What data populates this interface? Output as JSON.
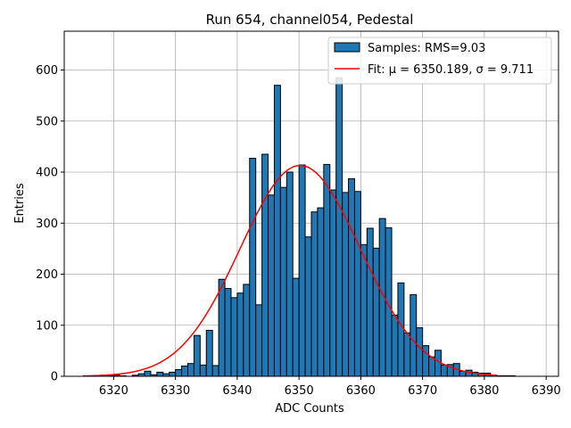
{
  "chart_data": {
    "type": "bar",
    "title": "Run 654, channel054, Pedestal",
    "xlabel": "ADC Counts",
    "ylabel": "Entries",
    "xlim": [
      6312,
      6392
    ],
    "ylim": [
      0,
      676
    ],
    "xticks": [
      6320,
      6330,
      6340,
      6350,
      6360,
      6370,
      6380,
      6390
    ],
    "yticks": [
      0,
      100,
      200,
      300,
      400,
      500,
      600
    ],
    "grid": true,
    "legend_position": "top-right",
    "bin_width": 1,
    "bin_start": 6318,
    "counts": [
      2,
      1,
      2,
      1,
      0,
      2,
      5,
      10,
      3,
      8,
      5,
      8,
      13,
      20,
      25,
      80,
      22,
      90,
      21,
      190,
      172,
      154,
      163,
      180,
      427,
      140,
      435,
      355,
      570,
      370,
      400,
      192,
      414,
      273,
      322,
      330,
      415,
      365,
      585,
      360,
      387,
      362,
      258,
      290,
      251,
      309,
      291,
      120,
      183,
      85,
      160,
      95,
      60,
      38,
      51,
      22,
      23,
      25,
      10,
      12,
      8,
      6,
      6,
      2,
      1,
      1,
      1,
      0,
      0,
      0,
      0,
      0
    ],
    "series": [
      {
        "name": "Samples: RMS=9.03",
        "kind": "histogram",
        "fill": "#1f77b4",
        "edge": "#000000"
      },
      {
        "name": "Fit: μ = 6350.189, σ = 9.711",
        "kind": "line",
        "color": "#ff0000",
        "mu": 6350.189,
        "sigma": 9.711,
        "amplitude": 413,
        "x_range": [
          6315,
          6382
        ]
      }
    ]
  }
}
